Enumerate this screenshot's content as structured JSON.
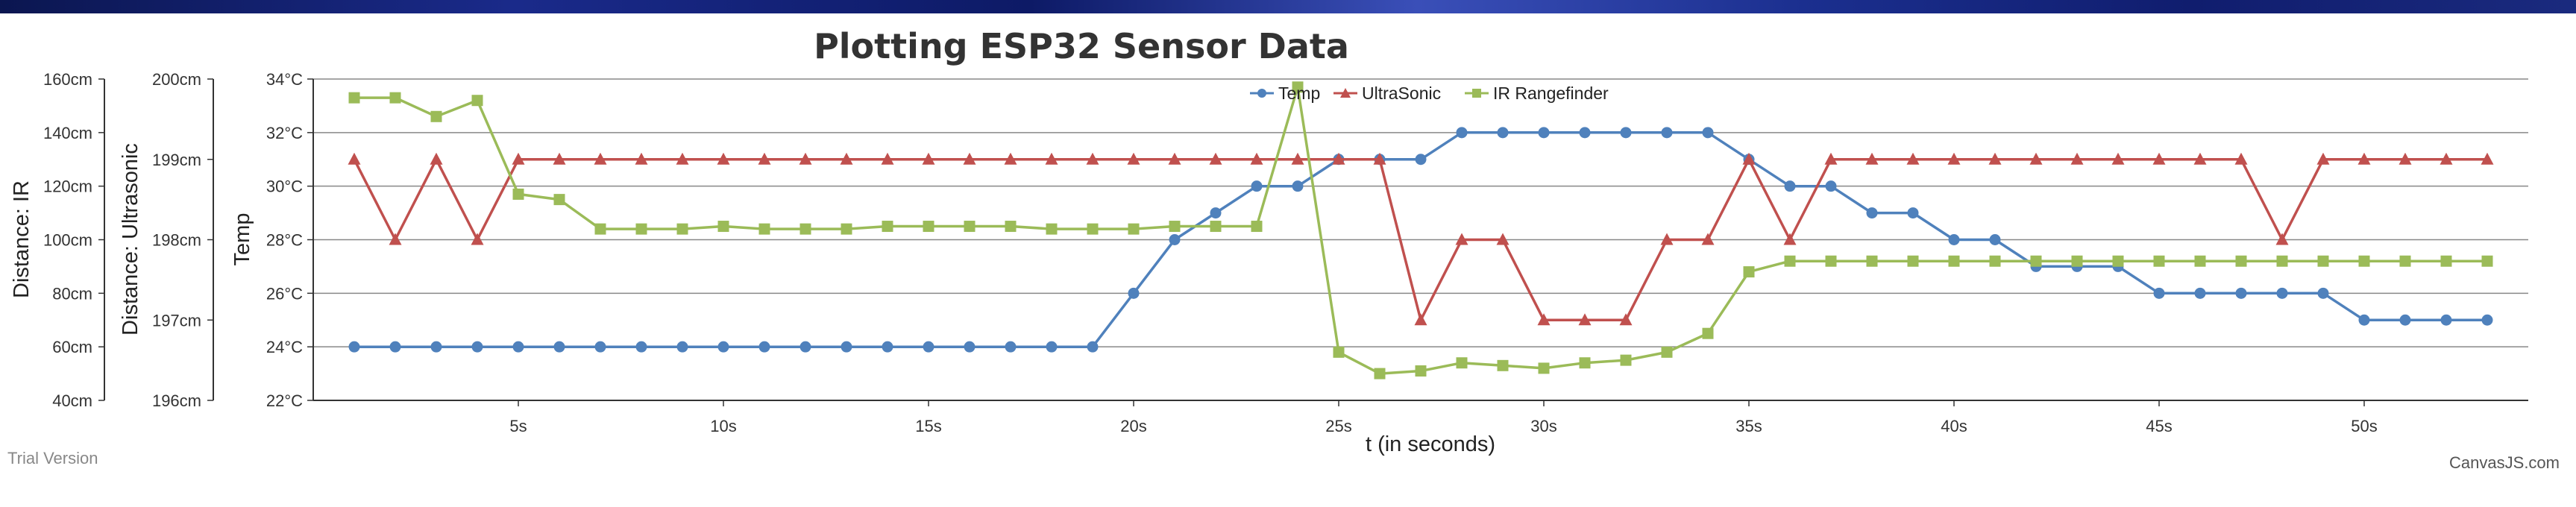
{
  "colors": {
    "temp": "#4f81bc",
    "ultrasonic": "#c0504e",
    "ir": "#9bbb58",
    "grid": "#888888",
    "axis": "#333333"
  },
  "footer": {
    "trial_label": "Trial Version",
    "credit_label": "CanvasJS.com"
  },
  "chart_data": {
    "type": "line",
    "title": "Plotting ESP32 Sensor Data",
    "xlabel": "t (in seconds)",
    "x_ticks": [
      "5s",
      "10s",
      "15s",
      "20s",
      "25s",
      "30s",
      "35s",
      "40s",
      "45s",
      "50s"
    ],
    "x": [
      1,
      2,
      3,
      4,
      5,
      6,
      7,
      8,
      9,
      10,
      11,
      12,
      13,
      14,
      15,
      16,
      17,
      18,
      19,
      20,
      21,
      22,
      23,
      24,
      25,
      26,
      27,
      28,
      29,
      30,
      31,
      32,
      33,
      34,
      35,
      36,
      37,
      38,
      39,
      40,
      41,
      42,
      43,
      44,
      45,
      46,
      47,
      48,
      49,
      50,
      51,
      52,
      53
    ],
    "xlim": [
      0,
      54
    ],
    "y_axes": [
      {
        "id": "temp",
        "title": "Temp",
        "range": [
          22,
          34
        ],
        "ticks": [
          "22°C",
          "24°C",
          "26°C",
          "28°C",
          "30°C",
          "32°C",
          "34°C"
        ]
      },
      {
        "id": "ultrasonic",
        "title": "Distance: Ultrasonic",
        "range": [
          196,
          200
        ],
        "ticks": [
          "196cm",
          "197cm",
          "198cm",
          "199cm",
          "200cm"
        ]
      },
      {
        "id": "ir",
        "title": "Distance: IR",
        "range": [
          40,
          160
        ],
        "ticks": [
          "40cm",
          "60cm",
          "80cm",
          "100cm",
          "120cm",
          "140cm",
          "160cm"
        ]
      }
    ],
    "grid": true,
    "legend_position": "top-center",
    "series": [
      {
        "name": "Temp",
        "axis": "temp",
        "marker": "circle",
        "values": [
          24,
          24,
          24,
          24,
          24,
          24,
          24,
          24,
          24,
          24,
          24,
          24,
          24,
          24,
          24,
          24,
          24,
          24,
          24,
          26,
          28,
          29,
          30,
          30,
          31,
          31,
          31,
          32,
          32,
          32,
          32,
          32,
          32,
          32,
          31,
          30,
          30,
          29,
          29,
          28,
          28,
          27,
          27,
          27,
          26,
          26,
          26,
          26,
          26,
          25,
          25,
          25,
          25
        ]
      },
      {
        "name": "UltraSonic",
        "axis": "ultrasonic",
        "marker": "triangle",
        "values": [
          199,
          198,
          199,
          198,
          199,
          199,
          199,
          199,
          199,
          199,
          199,
          199,
          199,
          199,
          199,
          199,
          199,
          199,
          199,
          199,
          199,
          199,
          199,
          199,
          199,
          199,
          197,
          198,
          198,
          197,
          197,
          197,
          198,
          198,
          199,
          198,
          199,
          199,
          199,
          199,
          199,
          199,
          199,
          199,
          199,
          199,
          199,
          198,
          199,
          199,
          199,
          199,
          199
        ]
      },
      {
        "name": "IR Rangefinder",
        "axis": "ir",
        "marker": "square",
        "values": [
          153,
          153,
          146,
          152,
          117,
          115,
          104,
          104,
          104,
          105,
          104,
          104,
          104,
          105,
          105,
          105,
          105,
          104,
          104,
          104,
          105,
          105,
          105,
          157,
          58,
          50,
          51,
          54,
          53,
          52,
          54,
          55,
          58,
          65,
          88,
          92,
          92,
          92,
          92,
          92,
          92,
          92,
          92,
          92,
          92,
          92,
          92,
          92,
          92,
          92,
          92,
          92,
          92
        ]
      }
    ]
  }
}
